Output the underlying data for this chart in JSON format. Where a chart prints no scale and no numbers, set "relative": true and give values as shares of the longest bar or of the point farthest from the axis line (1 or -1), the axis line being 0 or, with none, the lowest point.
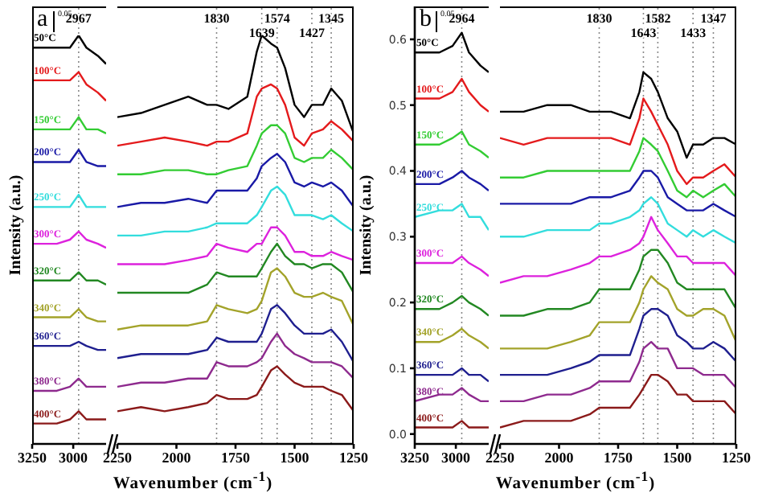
{
  "chart_data": [
    {
      "type": "line",
      "ylabel": "Intensity (a.u.)",
      "annotations": [
        "a",
        "0.05"
      ],
      "relative": true,
      "tick_labels": "x",
      "marker": "none",
      "line_style": "solid",
      "x": [
        3250,
        3100,
        3020,
        2967,
        2920,
        2850,
        2800
      ],
      "xlim": [
        3250,
        2800
      ],
      "xticks": [
        3250,
        3000
      ],
      "ref_lines": [
        {
          "axis": "x",
          "value": 2967,
          "label": "2967",
          "color": "#888888",
          "line_style": "dotted"
        }
      ],
      "series": [
        {
          "name": "50°C",
          "color": "#000000",
          "values": [
            0.97,
            0.97,
            0.97,
            1.0,
            0.97,
            0.95,
            0.93
          ]
        },
        {
          "name": "100°C",
          "color": "#e41a1c",
          "values": [
            0.89,
            0.89,
            0.89,
            0.91,
            0.88,
            0.86,
            0.84
          ]
        },
        {
          "name": "150°C",
          "color": "#33cc33",
          "values": [
            0.77,
            0.77,
            0.77,
            0.8,
            0.77,
            0.77,
            0.76
          ]
        },
        {
          "name": "200°C",
          "color": "#1a1aa6",
          "values": [
            0.69,
            0.69,
            0.69,
            0.72,
            0.69,
            0.68,
            0.68
          ]
        },
        {
          "name": "250°C",
          "color": "#33dddd",
          "values": [
            0.58,
            0.58,
            0.58,
            0.61,
            0.58,
            0.58,
            0.58
          ]
        },
        {
          "name": "300°C",
          "color": "#dd22dd",
          "values": [
            0.49,
            0.49,
            0.5,
            0.52,
            0.5,
            0.49,
            0.48
          ]
        },
        {
          "name": "320°C",
          "color": "#228822",
          "values": [
            0.4,
            0.4,
            0.4,
            0.42,
            0.4,
            0.4,
            0.39
          ]
        },
        {
          "name": "340°C",
          "color": "#a3a32a",
          "values": [
            0.31,
            0.31,
            0.31,
            0.33,
            0.31,
            0.3,
            0.3
          ]
        },
        {
          "name": "360°C",
          "color": "#1f1f8f",
          "values": [
            0.24,
            0.24,
            0.24,
            0.25,
            0.24,
            0.23,
            0.23
          ]
        },
        {
          "name": "380°C",
          "color": "#8e2a8e",
          "values": [
            0.13,
            0.13,
            0.14,
            0.16,
            0.14,
            0.14,
            0.14
          ]
        },
        {
          "name": "400°C",
          "color": "#8b1a1a",
          "values": [
            0.05,
            0.05,
            0.06,
            0.08,
            0.06,
            0.06,
            0.06
          ]
        }
      ]
    },
    {
      "type": "line",
      "xlabel": "Wavenumber (cm$^{-1}$)",
      "relative": true,
      "tick_labels": "x",
      "marker": "none",
      "line_style": "solid",
      "x": [
        2250,
        2150,
        2050,
        1950,
        1870,
        1830,
        1780,
        1700,
        1660,
        1639,
        1600,
        1574,
        1540,
        1500,
        1460,
        1427,
        1380,
        1345,
        1300,
        1250
      ],
      "xlim": [
        2250,
        1250
      ],
      "xticks": [
        2250,
        2000,
        1750,
        1500,
        1250
      ],
      "ref_lines": [
        {
          "axis": "x",
          "value": 1830,
          "label": "1830",
          "color": "#888888",
          "line_style": "dotted"
        },
        {
          "axis": "x",
          "value": 1639,
          "label": "1639",
          "color": "#888888",
          "line_style": "dotted"
        },
        {
          "axis": "x",
          "value": 1574,
          "label": "1574",
          "color": "#888888",
          "line_style": "dotted"
        },
        {
          "axis": "x",
          "value": 1427,
          "label": "1427",
          "color": "#888888",
          "line_style": "dotted"
        },
        {
          "axis": "x",
          "value": 1345,
          "label": "1345",
          "color": "#888888",
          "line_style": "dotted"
        }
      ],
      "series": [
        {
          "color": "#000000",
          "values": [
            0.8,
            0.81,
            0.83,
            0.85,
            0.83,
            0.83,
            0.82,
            0.85,
            0.96,
            1.0,
            0.98,
            0.97,
            0.92,
            0.83,
            0.8,
            0.83,
            0.83,
            0.87,
            0.84,
            0.76
          ]
        },
        {
          "color": "#e41a1c",
          "values": [
            0.73,
            0.74,
            0.75,
            0.74,
            0.73,
            0.74,
            0.74,
            0.76,
            0.85,
            0.87,
            0.88,
            0.87,
            0.83,
            0.75,
            0.73,
            0.76,
            0.77,
            0.79,
            0.77,
            0.74
          ]
        },
        {
          "color": "#33cc33",
          "values": [
            0.66,
            0.66,
            0.67,
            0.67,
            0.66,
            0.66,
            0.67,
            0.68,
            0.73,
            0.76,
            0.78,
            0.78,
            0.76,
            0.7,
            0.69,
            0.7,
            0.7,
            0.72,
            0.7,
            0.67
          ]
        },
        {
          "color": "#1a1aa6",
          "values": [
            0.58,
            0.59,
            0.59,
            0.6,
            0.59,
            0.62,
            0.62,
            0.62,
            0.65,
            0.68,
            0.7,
            0.71,
            0.69,
            0.64,
            0.63,
            0.64,
            0.63,
            0.64,
            0.62,
            0.58
          ]
        },
        {
          "color": "#33dddd",
          "values": [
            0.51,
            0.51,
            0.52,
            0.52,
            0.53,
            0.54,
            0.54,
            0.54,
            0.56,
            0.58,
            0.62,
            0.63,
            0.61,
            0.56,
            0.56,
            0.56,
            0.55,
            0.56,
            0.54,
            0.52
          ]
        },
        {
          "color": "#dd22dd",
          "values": [
            0.44,
            0.44,
            0.44,
            0.45,
            0.46,
            0.49,
            0.48,
            0.47,
            0.49,
            0.49,
            0.53,
            0.53,
            0.51,
            0.47,
            0.47,
            0.46,
            0.46,
            0.47,
            0.46,
            0.45
          ]
        },
        {
          "color": "#228822",
          "values": [
            0.37,
            0.37,
            0.37,
            0.37,
            0.39,
            0.42,
            0.41,
            0.41,
            0.41,
            0.43,
            0.47,
            0.49,
            0.46,
            0.44,
            0.44,
            0.43,
            0.44,
            0.44,
            0.42,
            0.37
          ]
        },
        {
          "color": "#a3a32a",
          "values": [
            0.28,
            0.29,
            0.29,
            0.29,
            0.3,
            0.34,
            0.33,
            0.32,
            0.33,
            0.35,
            0.42,
            0.43,
            0.41,
            0.37,
            0.36,
            0.36,
            0.37,
            0.36,
            0.35,
            0.29
          ]
        },
        {
          "color": "#1f1f8f",
          "values": [
            0.21,
            0.22,
            0.22,
            0.22,
            0.23,
            0.26,
            0.25,
            0.25,
            0.25,
            0.27,
            0.33,
            0.34,
            0.32,
            0.29,
            0.27,
            0.27,
            0.27,
            0.28,
            0.25,
            0.2
          ]
        },
        {
          "color": "#8e2a8e",
          "values": [
            0.14,
            0.15,
            0.15,
            0.16,
            0.16,
            0.2,
            0.19,
            0.19,
            0.2,
            0.21,
            0.25,
            0.27,
            0.24,
            0.22,
            0.21,
            0.2,
            0.2,
            0.2,
            0.19,
            0.16
          ]
        },
        {
          "color": "#8b1a1a",
          "values": [
            0.08,
            0.09,
            0.08,
            0.09,
            0.1,
            0.12,
            0.11,
            0.11,
            0.12,
            0.14,
            0.18,
            0.19,
            0.17,
            0.15,
            0.14,
            0.14,
            0.14,
            0.13,
            0.12,
            0.08
          ]
        }
      ]
    },
    {
      "type": "line",
      "ylabel": "Intensity (a.u.)",
      "annotations": [
        "b",
        "0.05"
      ],
      "marker": "none",
      "line_style": "solid",
      "x": [
        3250,
        3100,
        3020,
        2964,
        2920,
        2850,
        2800
      ],
      "xlim": [
        3250,
        2800
      ],
      "xticks": [
        3250,
        3000
      ],
      "ylim": [
        -0.015,
        0.65
      ],
      "yticks": [
        {
          "value": 0,
          "label": "0.0"
        },
        0.1,
        0.2,
        0.3,
        0.4,
        0.5,
        0.6
      ],
      "ref_lines": [
        {
          "axis": "x",
          "value": 2964,
          "label": "2964",
          "color": "#888888",
          "line_style": "dotted"
        }
      ],
      "series": [
        {
          "name": "50°C",
          "color": "#000000",
          "values": [
            0.58,
            0.58,
            0.59,
            0.61,
            0.58,
            0.56,
            0.55
          ]
        },
        {
          "name": "100°C",
          "color": "#e41a1c",
          "values": [
            0.51,
            0.51,
            0.52,
            0.54,
            0.52,
            0.5,
            0.49
          ]
        },
        {
          "name": "150°C",
          "color": "#33cc33",
          "values": [
            0.44,
            0.44,
            0.45,
            0.46,
            0.44,
            0.43,
            0.42
          ]
        },
        {
          "name": "200°C",
          "color": "#1a1aa6",
          "values": [
            0.38,
            0.38,
            0.39,
            0.4,
            0.39,
            0.38,
            0.37
          ]
        },
        {
          "name": "250°C",
          "color": "#33dddd",
          "values": [
            0.33,
            0.34,
            0.34,
            0.35,
            0.33,
            0.33,
            0.31
          ]
        },
        {
          "name": "300°C",
          "color": "#dd22dd",
          "values": [
            0.26,
            0.26,
            0.26,
            0.27,
            0.26,
            0.25,
            0.24
          ]
        },
        {
          "name": "320°C",
          "color": "#228822",
          "values": [
            0.19,
            0.19,
            0.2,
            0.21,
            0.2,
            0.19,
            0.18
          ]
        },
        {
          "name": "340°C",
          "color": "#a3a32a",
          "values": [
            0.14,
            0.14,
            0.15,
            0.16,
            0.15,
            0.14,
            0.13
          ]
        },
        {
          "name": "360°C",
          "color": "#1f1f8f",
          "values": [
            0.09,
            0.09,
            0.09,
            0.1,
            0.09,
            0.09,
            0.08
          ]
        },
        {
          "name": "380°C",
          "color": "#8e2a8e",
          "values": [
            0.05,
            0.06,
            0.06,
            0.07,
            0.06,
            0.05,
            0.05
          ]
        },
        {
          "name": "400°C",
          "color": "#8b1a1a",
          "values": [
            0.01,
            0.01,
            0.01,
            0.02,
            0.01,
            0.01,
            0.01
          ]
        }
      ]
    },
    {
      "type": "line",
      "xlabel": "Wavenumber (cm$^{-1}$)",
      "tick_labels": "x",
      "marker": "none",
      "line_style": "solid",
      "x": [
        2250,
        2150,
        2050,
        1950,
        1870,
        1830,
        1780,
        1700,
        1660,
        1643,
        1610,
        1582,
        1540,
        1500,
        1460,
        1433,
        1390,
        1347,
        1300,
        1250
      ],
      "xlim": [
        2250,
        1250
      ],
      "xticks": [
        2250,
        2000,
        1750,
        1500,
        1250
      ],
      "ylim": [
        -0.015,
        0.65
      ],
      "ref_lines": [
        {
          "axis": "x",
          "value": 1830,
          "label": "1830",
          "color": "#888888",
          "line_style": "dotted"
        },
        {
          "axis": "x",
          "value": 1643,
          "label": "1643",
          "color": "#888888",
          "line_style": "dotted"
        },
        {
          "axis": "x",
          "value": 1582,
          "label": "1582",
          "color": "#888888",
          "line_style": "dotted"
        },
        {
          "axis": "x",
          "value": 1433,
          "label": "1433",
          "color": "#888888",
          "line_style": "dotted"
        },
        {
          "axis": "x",
          "value": 1347,
          "label": "1347",
          "color": "#888888",
          "line_style": "dotted"
        }
      ],
      "series": [
        {
          "color": "#000000",
          "values": [
            0.49,
            0.49,
            0.5,
            0.5,
            0.49,
            0.49,
            0.49,
            0.48,
            0.52,
            0.55,
            0.54,
            0.52,
            0.48,
            0.46,
            0.42,
            0.44,
            0.44,
            0.45,
            0.45,
            0.44
          ]
        },
        {
          "color": "#e41a1c",
          "values": [
            0.45,
            0.44,
            0.45,
            0.45,
            0.45,
            0.45,
            0.45,
            0.44,
            0.48,
            0.51,
            0.49,
            0.47,
            0.44,
            0.4,
            0.38,
            0.39,
            0.39,
            0.4,
            0.41,
            0.39
          ]
        },
        {
          "color": "#33cc33",
          "values": [
            0.39,
            0.39,
            0.4,
            0.4,
            0.4,
            0.4,
            0.4,
            0.4,
            0.43,
            0.45,
            0.44,
            0.43,
            0.4,
            0.37,
            0.36,
            0.37,
            0.36,
            0.37,
            0.38,
            0.36
          ]
        },
        {
          "color": "#1a1aa6",
          "values": [
            0.35,
            0.35,
            0.35,
            0.35,
            0.36,
            0.36,
            0.36,
            0.37,
            0.39,
            0.4,
            0.4,
            0.39,
            0.36,
            0.35,
            0.34,
            0.34,
            0.34,
            0.35,
            0.34,
            0.33
          ]
        },
        {
          "color": "#33dddd",
          "values": [
            0.3,
            0.3,
            0.31,
            0.31,
            0.31,
            0.32,
            0.32,
            0.33,
            0.34,
            0.35,
            0.36,
            0.35,
            0.32,
            0.31,
            0.3,
            0.31,
            0.3,
            0.31,
            0.3,
            0.29
          ]
        },
        {
          "color": "#dd22dd",
          "values": [
            0.23,
            0.24,
            0.24,
            0.25,
            0.26,
            0.27,
            0.27,
            0.28,
            0.29,
            0.3,
            0.33,
            0.31,
            0.29,
            0.27,
            0.27,
            0.26,
            0.26,
            0.26,
            0.26,
            0.24
          ]
        },
        {
          "color": "#228822",
          "values": [
            0.18,
            0.18,
            0.19,
            0.19,
            0.2,
            0.22,
            0.22,
            0.22,
            0.25,
            0.27,
            0.28,
            0.28,
            0.26,
            0.23,
            0.22,
            0.22,
            0.22,
            0.22,
            0.22,
            0.19
          ]
        },
        {
          "color": "#a3a32a",
          "values": [
            0.13,
            0.13,
            0.13,
            0.14,
            0.15,
            0.17,
            0.17,
            0.17,
            0.2,
            0.22,
            0.24,
            0.23,
            0.22,
            0.19,
            0.18,
            0.18,
            0.19,
            0.19,
            0.18,
            0.14
          ]
        },
        {
          "color": "#1f1f8f",
          "values": [
            0.09,
            0.09,
            0.09,
            0.1,
            0.11,
            0.12,
            0.12,
            0.12,
            0.16,
            0.18,
            0.19,
            0.19,
            0.18,
            0.15,
            0.14,
            0.13,
            0.13,
            0.14,
            0.13,
            0.11
          ]
        },
        {
          "color": "#8e2a8e",
          "values": [
            0.05,
            0.05,
            0.06,
            0.06,
            0.07,
            0.08,
            0.08,
            0.08,
            0.11,
            0.13,
            0.14,
            0.13,
            0.13,
            0.1,
            0.1,
            0.1,
            0.09,
            0.09,
            0.09,
            0.07
          ]
        },
        {
          "color": "#8b1a1a",
          "values": [
            0.01,
            0.02,
            0.02,
            0.02,
            0.03,
            0.04,
            0.04,
            0.04,
            0.06,
            0.07,
            0.09,
            0.09,
            0.08,
            0.06,
            0.06,
            0.05,
            0.05,
            0.05,
            0.05,
            0.03
          ]
        }
      ]
    }
  ]
}
